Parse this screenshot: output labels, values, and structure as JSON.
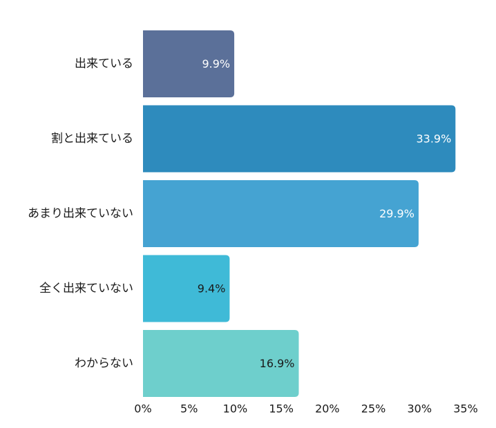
{
  "chart_data": {
    "type": "bar",
    "orientation": "horizontal",
    "categories": [
      "出来ている",
      "割と出来ている",
      "あまり出来ていない",
      "全く出来ていない",
      "わからない"
    ],
    "values": [
      9.9,
      33.9,
      29.9,
      9.4,
      16.9
    ],
    "data_labels": [
      "9.9%",
      "33.9%",
      "29.9%",
      "9.4%",
      "16.9%"
    ],
    "bar_colors": [
      "#5b7099",
      "#2e8bbd",
      "#45a3d2",
      "#3fbad7",
      "#6ecfcc"
    ],
    "label_colors": [
      "#ffffff",
      "#ffffff",
      "#ffffff",
      "#1a1a1a",
      "#1a1a1a"
    ],
    "x_ticks": [
      0,
      5,
      10,
      15,
      20,
      25,
      30,
      35
    ],
    "x_tick_labels": [
      "0%",
      "5%",
      "10%",
      "15%",
      "20%",
      "25%",
      "30%",
      "35%"
    ],
    "xlim": [
      0,
      35
    ],
    "title": "",
    "xlabel": "",
    "ylabel": "",
    "grid": false,
    "legend": "none"
  }
}
